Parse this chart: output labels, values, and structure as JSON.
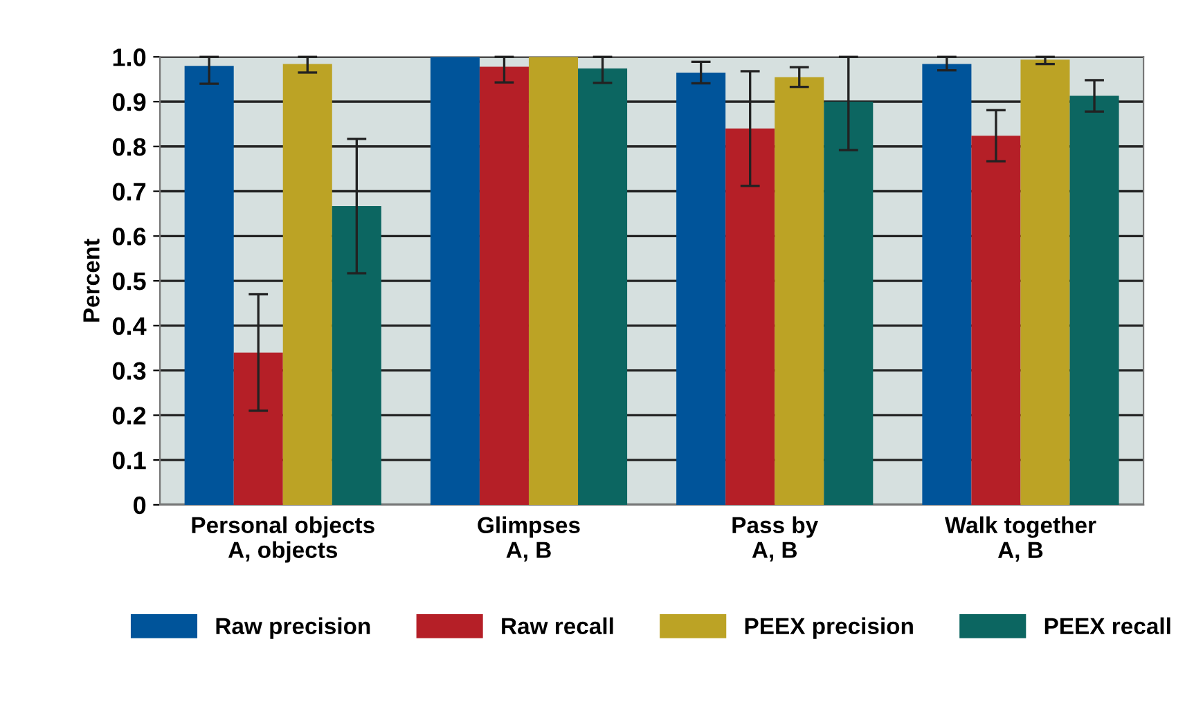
{
  "chart_data": {
    "type": "bar",
    "ylabel": "Percent",
    "categories": [
      "Personal objects\nA, objects",
      "Glimpses\nA, B",
      "Pass by\nA, B",
      "Walk together\nA, B"
    ],
    "series": [
      {
        "name": "Raw precision",
        "color": "#00549a",
        "values": [
          0.98,
          1.0,
          0.965,
          0.984
        ],
        "errors": [
          [
            0.94,
            1.0
          ],
          null,
          0.024,
          [
            0.97,
            1.0
          ]
        ]
      },
      {
        "name": "Raw recall",
        "color": "#b51f27",
        "values": [
          0.34,
          0.978,
          0.84,
          0.824
        ],
        "errors": [
          0.13,
          [
            0.943,
            1.0
          ],
          0.128,
          0.057
        ]
      },
      {
        "name": "PEEX precision",
        "color": "#bca325",
        "values": [
          0.984,
          1.0,
          0.955,
          0.994
        ],
        "errors": [
          [
            0.965,
            1.0
          ],
          null,
          0.022,
          [
            0.984,
            1.0
          ]
        ]
      },
      {
        "name": "PEEX recall",
        "color": "#0c6661",
        "values": [
          0.667,
          0.974,
          0.9,
          0.913
        ],
        "errors": [
          0.15,
          [
            0.942,
            1.0
          ],
          [
            0.792,
            1.0
          ],
          0.035
        ]
      }
    ],
    "ylim": [
      0,
      1.0
    ],
    "yticks": [
      0,
      0.1,
      0.2,
      0.3,
      0.4,
      0.5,
      0.6,
      0.7,
      0.8,
      0.9,
      {
        "value": 1,
        "label": "1.0"
      }
    ],
    "grid": "y",
    "legend": "bottom"
  }
}
